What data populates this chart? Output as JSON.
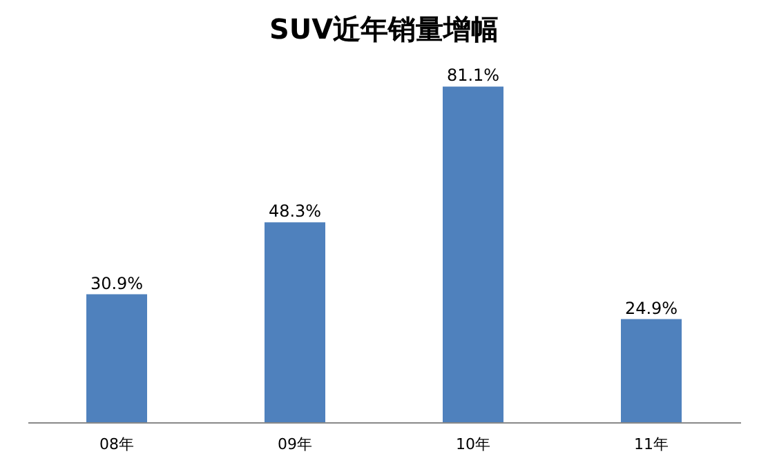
{
  "chart_data": {
    "type": "bar",
    "title": "SUV近年销量增幅",
    "categories": [
      "08年",
      "09年",
      "10年",
      "11年"
    ],
    "values": [
      30.9,
      48.3,
      81.1,
      24.9
    ],
    "value_labels": [
      "30.9%",
      "48.3%",
      "81.1%",
      "24.9%"
    ],
    "color": "#4f81bd",
    "grid": false
  }
}
